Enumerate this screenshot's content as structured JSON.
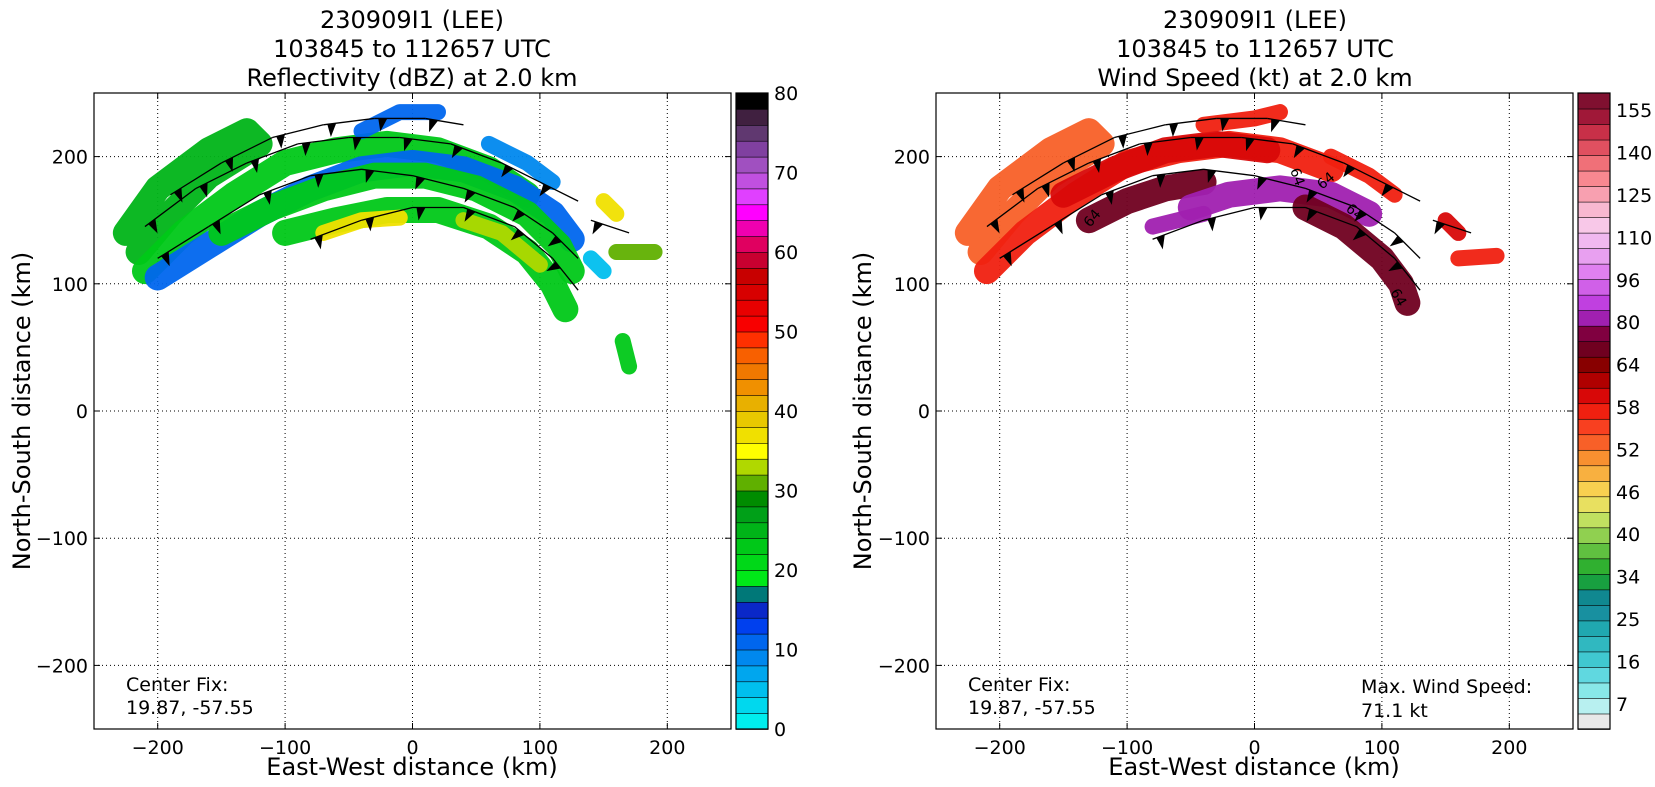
{
  "chart_data": [
    {
      "type": "heatmap",
      "title": [
        "230909I1 (LEE)",
        "103845 to 112657 UTC",
        "Reflectivity (dBZ) at 2.0 km"
      ],
      "xlabel": "East-West distance (km)",
      "ylabel": "North-South distance (km)",
      "xlim": [
        -250,
        250
      ],
      "ylim": [
        -250,
        250
      ],
      "xticks": [
        -200,
        -100,
        0,
        100,
        200
      ],
      "yticks": [
        -200,
        -100,
        0,
        100,
        200
      ],
      "grid": true,
      "annotations": [
        {
          "lines": [
            "Center Fix:",
            "19.87, -57.55"
          ],
          "position": "bottom-left"
        }
      ],
      "colorbar": {
        "range": [
          0,
          80
        ],
        "ticks": [
          0,
          10,
          20,
          30,
          40,
          50,
          60,
          70,
          80
        ],
        "colors": [
          "#00eeee",
          "#00d8ee",
          "#00bfee",
          "#00a6ee",
          "#0088ee",
          "#0066ee",
          "#0040ee",
          "#0a28c8",
          "#007878",
          "#00e818",
          "#00d818",
          "#00c818",
          "#00b418",
          "#00a018",
          "#008c00",
          "#60b000",
          "#b0d800",
          "#ffff00",
          "#f0e000",
          "#e8c800",
          "#e8b000",
          "#f09000",
          "#f07800",
          "#f86000",
          "#ff3000",
          "#f80000",
          "#e80000",
          "#d80000",
          "#c80000",
          "#c80030",
          "#e00060",
          "#f000b0",
          "#ff00ff",
          "#e040ff",
          "#c050e0",
          "#a050c0",
          "#8040a0",
          "#603870",
          "#402040",
          "#000000"
        ]
      },
      "bands": [
        {
          "path": [
            [
              -215,
              125
            ],
            [
              -190,
              155
            ],
            [
              -160,
              185
            ],
            [
              -120,
              210
            ],
            [
              -130,
              220
            ],
            [
              -160,
              205
            ],
            [
              -200,
              175
            ],
            [
              -225,
              140
            ]
          ],
          "color": "#00b418"
        },
        {
          "path": [
            [
              -210,
              110
            ],
            [
              -180,
              140
            ],
            [
              -140,
              170
            ],
            [
              -100,
              195
            ],
            [
              -60,
              205
            ],
            [
              -20,
              210
            ],
            [
              20,
              205
            ],
            [
              60,
              190
            ],
            [
              90,
              170
            ]
          ],
          "color": "#00c818"
        },
        {
          "path": [
            [
              -200,
              105
            ],
            [
              -160,
              130
            ],
            [
              -120,
              155
            ],
            [
              -80,
              175
            ],
            [
              -40,
              190
            ],
            [
              0,
              195
            ],
            [
              40,
              190
            ],
            [
              80,
              175
            ],
            [
              110,
              155
            ],
            [
              125,
              135
            ]
          ],
          "color": "#0066ee"
        },
        {
          "path": [
            [
              -150,
              140
            ],
            [
              -110,
              160
            ],
            [
              -70,
              175
            ],
            [
              -30,
              185
            ],
            [
              10,
              185
            ],
            [
              50,
              175
            ],
            [
              90,
              155
            ],
            [
              115,
              130
            ],
            [
              125,
              110
            ]
          ],
          "color": "#00c818"
        },
        {
          "path": [
            [
              -100,
              140
            ],
            [
              -60,
              150
            ],
            [
              -20,
              158
            ],
            [
              20,
              158
            ],
            [
              60,
              145
            ],
            [
              90,
              125
            ],
            [
              110,
              100
            ],
            [
              120,
              80
            ]
          ],
          "color": "#00c818"
        },
        {
          "path": [
            [
              -70,
              140
            ],
            [
              -40,
              150
            ],
            [
              -10,
              152
            ]
          ],
          "color": "#f0e000"
        },
        {
          "path": [
            [
              40,
              150
            ],
            [
              70,
              140
            ],
            [
              100,
              115
            ]
          ],
          "color": "#b0d800"
        },
        {
          "path": [
            [
              -40,
              220
            ],
            [
              -10,
              235
            ],
            [
              20,
              235
            ]
          ],
          "color": "#0066ee"
        },
        {
          "path": [
            [
              60,
              210
            ],
            [
              90,
              195
            ],
            [
              110,
              180
            ]
          ],
          "color": "#0088ee"
        },
        {
          "path": [
            [
              150,
              165
            ],
            [
              160,
              155
            ]
          ],
          "color": "#f0e000"
        },
        {
          "path": [
            [
              160,
              125
            ],
            [
              190,
              125
            ]
          ],
          "color": "#60b000"
        },
        {
          "path": [
            [
              165,
              55
            ],
            [
              170,
              35
            ]
          ],
          "color": "#00c818"
        },
        {
          "path": [
            [
              140,
              120
            ],
            [
              150,
              110
            ]
          ],
          "color": "#00bfee"
        }
      ],
      "barb_rows": [
        {
          "path": [
            [
              -200,
              120
            ],
            [
              -160,
              145
            ],
            [
              -120,
              170
            ],
            [
              -80,
              185
            ],
            [
              -40,
              190
            ],
            [
              0,
              185
            ],
            [
              40,
              175
            ],
            [
              80,
              160
            ],
            [
              110,
              140
            ],
            [
              130,
              120
            ]
          ]
        },
        {
          "path": [
            [
              -210,
              145
            ],
            [
              -170,
              175
            ],
            [
              -130,
              195
            ],
            [
              -90,
              210
            ],
            [
              -50,
              215
            ],
            [
              -10,
              215
            ],
            [
              30,
              210
            ],
            [
              70,
              195
            ],
            [
              100,
              180
            ],
            [
              130,
              165
            ]
          ]
        },
        {
          "path": [
            [
              -190,
              170
            ],
            [
              -150,
              195
            ],
            [
              -110,
              215
            ],
            [
              -70,
              225
            ],
            [
              -30,
              230
            ],
            [
              10,
              230
            ],
            [
              40,
              225
            ]
          ]
        },
        {
          "path": [
            [
              -80,
              135
            ],
            [
              -40,
              150
            ],
            [
              0,
              160
            ],
            [
              40,
              160
            ],
            [
              80,
              145
            ],
            [
              110,
              120
            ],
            [
              130,
              95
            ]
          ]
        },
        {
          "path": [
            [
              140,
              150
            ],
            [
              170,
              140
            ]
          ]
        }
      ]
    },
    {
      "type": "heatmap",
      "title": [
        "230909I1 (LEE)",
        "103845 to 112657 UTC",
        "Wind Speed (kt) at 2.0 km"
      ],
      "xlabel": "East-West distance (km)",
      "ylabel": "North-South distance (km)",
      "xlim": [
        -250,
        250
      ],
      "ylim": [
        -250,
        250
      ],
      "xticks": [
        -200,
        -100,
        0,
        100,
        200
      ],
      "yticks": [
        -200,
        -100,
        0,
        100,
        200
      ],
      "grid": true,
      "annotations": [
        {
          "lines": [
            "Center Fix:",
            "19.87, -57.55"
          ],
          "position": "bottom-left"
        },
        {
          "lines": [
            "Max. Wind Speed:",
            "71.1 kt"
          ],
          "position": "bottom-right"
        }
      ],
      "contour_labels": [
        "64",
        "64",
        "64",
        "64",
        "64"
      ],
      "colorbar": {
        "range": [
          0,
          160
        ],
        "ticklabels": [
          "7",
          "16",
          "25",
          "34",
          "40",
          "46",
          "52",
          "58",
          "64",
          "80",
          "96",
          "110",
          "125",
          "140",
          "155"
        ],
        "colors": [
          "#e8e8e8",
          "#b8f0f0",
          "#88e8e8",
          "#60d8e0",
          "#40c8d0",
          "#30b8c0",
          "#20a8b0",
          "#1890a0",
          "#108890",
          "#18a040",
          "#30b030",
          "#60c040",
          "#90d050",
          "#c0e060",
          "#e8e060",
          "#f8d050",
          "#f8b040",
          "#f89030",
          "#f86028",
          "#f84020",
          "#f02010",
          "#d80808",
          "#b00000",
          "#880000",
          "#700020",
          "#800040",
          "#a020b0",
          "#c040e0",
          "#d060e8",
          "#e080f0",
          "#e8a0f0",
          "#f0b8f0",
          "#f8c8e8",
          "#f8b8d0",
          "#f8a0b0",
          "#f88890",
          "#f07078",
          "#e05060",
          "#c83048",
          "#a01838",
          "#801030"
        ]
      },
      "bands": [
        {
          "path": [
            [
              -215,
              125
            ],
            [
              -190,
              155
            ],
            [
              -160,
              185
            ],
            [
              -120,
              210
            ],
            [
              -130,
              220
            ],
            [
              -160,
              205
            ],
            [
              -200,
              175
            ],
            [
              -225,
              140
            ]
          ],
          "color": "#f86028"
        },
        {
          "path": [
            [
              -210,
              110
            ],
            [
              -180,
              140
            ],
            [
              -140,
              170
            ],
            [
              -100,
              195
            ],
            [
              -60,
              205
            ],
            [
              -20,
              210
            ],
            [
              20,
              205
            ],
            [
              60,
              190
            ]
          ],
          "color": "#f02010"
        },
        {
          "path": [
            [
              -150,
              170
            ],
            [
              -110,
              190
            ],
            [
              -70,
              205
            ],
            [
              -30,
              210
            ],
            [
              10,
              205
            ]
          ],
          "color": "#d80808"
        },
        {
          "path": [
            [
              -130,
              150
            ],
            [
              -100,
              165
            ],
            [
              -70,
              175
            ],
            [
              -40,
              180
            ]
          ],
          "color": "#700020"
        },
        {
          "path": [
            [
              -50,
              160
            ],
            [
              -20,
              170
            ],
            [
              20,
              175
            ],
            [
              60,
              170
            ],
            [
              90,
              155
            ]
          ],
          "color": "#a020b0"
        },
        {
          "path": [
            [
              -80,
              145
            ],
            [
              -40,
              155
            ]
          ],
          "color": "#a020b0"
        },
        {
          "path": [
            [
              40,
              160
            ],
            [
              70,
              145
            ],
            [
              100,
              120
            ],
            [
              115,
              100
            ],
            [
              120,
              85
            ]
          ],
          "color": "#700020"
        },
        {
          "path": [
            [
              60,
              200
            ],
            [
              90,
              185
            ],
            [
              110,
              170
            ]
          ],
          "color": "#f02010"
        },
        {
          "path": [
            [
              150,
              150
            ],
            [
              160,
              140
            ]
          ],
          "color": "#d80808"
        },
        {
          "path": [
            [
              160,
              120
            ],
            [
              190,
              122
            ]
          ],
          "color": "#f02010"
        },
        {
          "path": [
            [
              -40,
              225
            ],
            [
              0,
              230
            ],
            [
              20,
              235
            ]
          ],
          "color": "#f02010"
        }
      ],
      "barb_rows": [
        {
          "path": [
            [
              -200,
              120
            ],
            [
              -160,
              145
            ],
            [
              -120,
              170
            ],
            [
              -80,
              185
            ],
            [
              -40,
              190
            ],
            [
              0,
              185
            ],
            [
              40,
              175
            ],
            [
              80,
              160
            ],
            [
              110,
              140
            ],
            [
              130,
              120
            ]
          ]
        },
        {
          "path": [
            [
              -210,
              145
            ],
            [
              -170,
              175
            ],
            [
              -130,
              195
            ],
            [
              -90,
              210
            ],
            [
              -50,
              215
            ],
            [
              -10,
              215
            ],
            [
              30,
              210
            ],
            [
              70,
              195
            ],
            [
              100,
              180
            ],
            [
              130,
              165
            ]
          ]
        },
        {
          "path": [
            [
              -190,
              170
            ],
            [
              -150,
              195
            ],
            [
              -110,
              215
            ],
            [
              -70,
              225
            ],
            [
              -30,
              230
            ],
            [
              10,
              230
            ],
            [
              40,
              225
            ]
          ]
        },
        {
          "path": [
            [
              -80,
              135
            ],
            [
              -40,
              150
            ],
            [
              0,
              160
            ],
            [
              40,
              160
            ],
            [
              80,
              145
            ],
            [
              110,
              120
            ],
            [
              130,
              95
            ]
          ]
        },
        {
          "path": [
            [
              140,
              150
            ],
            [
              170,
              140
            ]
          ]
        }
      ]
    }
  ]
}
